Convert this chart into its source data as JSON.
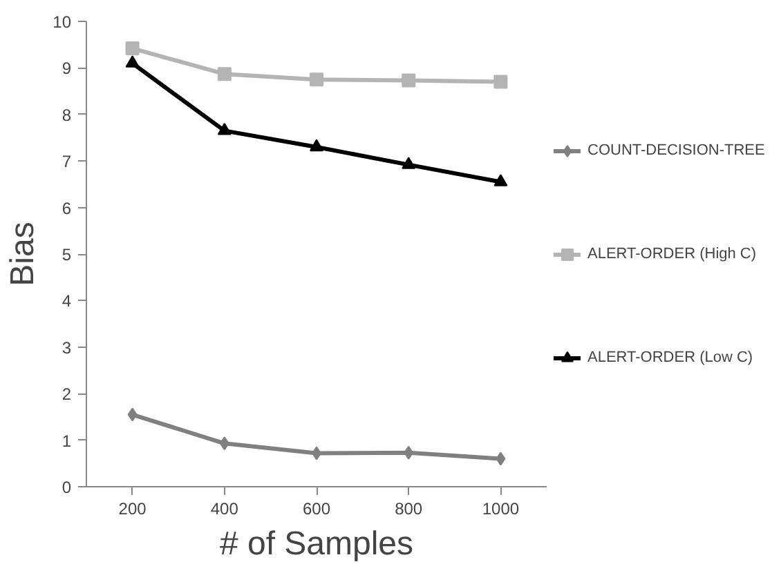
{
  "chart_data": {
    "type": "line",
    "xlabel": "# of Samples",
    "ylabel": "Bias",
    "categories": [
      "200",
      "400",
      "600",
      "800",
      "1000"
    ],
    "series": [
      {
        "name": "COUNT-DECISION-TREE",
        "color": "#808080",
        "marker": "diamond",
        "values": [
          1.55,
          0.93,
          0.72,
          0.73,
          0.6
        ]
      },
      {
        "name": "ALERT-ORDER (High C)",
        "color": "#b4b4b4",
        "marker": "square",
        "values": [
          9.42,
          8.87,
          8.75,
          8.73,
          8.7
        ]
      },
      {
        "name": "ALERT-ORDER (Low C)",
        "color": "#000000",
        "marker": "triangle",
        "values": [
          9.1,
          7.65,
          7.3,
          6.92,
          6.55
        ]
      }
    ],
    "ylim": [
      0,
      10
    ],
    "yticks": [
      0,
      1,
      2,
      3,
      4,
      5,
      6,
      7,
      8,
      9,
      10
    ],
    "grid": false,
    "legend": "right",
    "line_style": "solid"
  }
}
